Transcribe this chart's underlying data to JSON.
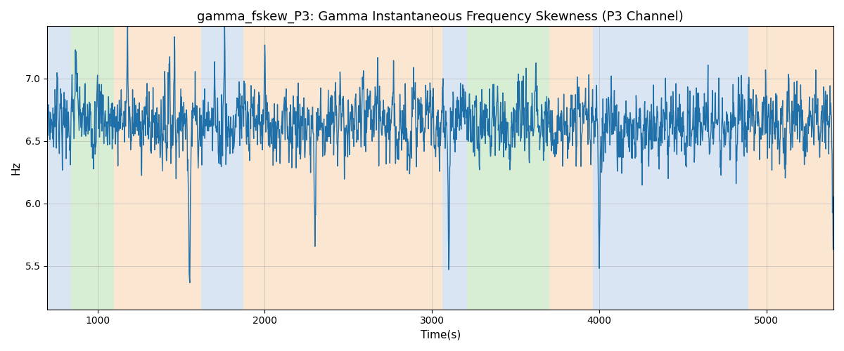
{
  "title": "gamma_fskew_P3: Gamma Instantaneous Frequency Skewness (P3 Channel)",
  "xlabel": "Time(s)",
  "ylabel": "Hz",
  "xlim": [
    700,
    5400
  ],
  "ylim": [
    5.15,
    7.42
  ],
  "yticks": [
    5.5,
    6.0,
    6.5,
    7.0
  ],
  "xticks": [
    1000,
    2000,
    3000,
    4000,
    5000
  ],
  "line_color": "#1f6fa8",
  "line_width": 1.0,
  "bg_regions": [
    {
      "xmin": 700,
      "xmax": 840,
      "color": "#aec6e8",
      "alpha": 0.45
    },
    {
      "xmin": 840,
      "xmax": 1100,
      "color": "#a8d8a0",
      "alpha": 0.45
    },
    {
      "xmin": 1100,
      "xmax": 1620,
      "color": "#f7c99a",
      "alpha": 0.45
    },
    {
      "xmin": 1620,
      "xmax": 1870,
      "color": "#aec6e8",
      "alpha": 0.45
    },
    {
      "xmin": 1870,
      "xmax": 3060,
      "color": "#f7c99a",
      "alpha": 0.45
    },
    {
      "xmin": 3060,
      "xmax": 3210,
      "color": "#aec6e8",
      "alpha": 0.45
    },
    {
      "xmin": 3210,
      "xmax": 3700,
      "color": "#a8d8a0",
      "alpha": 0.45
    },
    {
      "xmin": 3700,
      "xmax": 3960,
      "color": "#f7c99a",
      "alpha": 0.45
    },
    {
      "xmin": 3960,
      "xmax": 4890,
      "color": "#aec6e8",
      "alpha": 0.45
    },
    {
      "xmin": 4890,
      "xmax": 5400,
      "color": "#f7c99a",
      "alpha": 0.45
    }
  ],
  "signal_seed": 7,
  "signal_mean": 6.65,
  "figsize": [
    12.0,
    5.0
  ],
  "dpi": 100,
  "title_fontsize": 13,
  "axis_fontsize": 11,
  "grid_color": "#aaaaaa",
  "grid_alpha": 0.6,
  "grid_lw": 0.6
}
